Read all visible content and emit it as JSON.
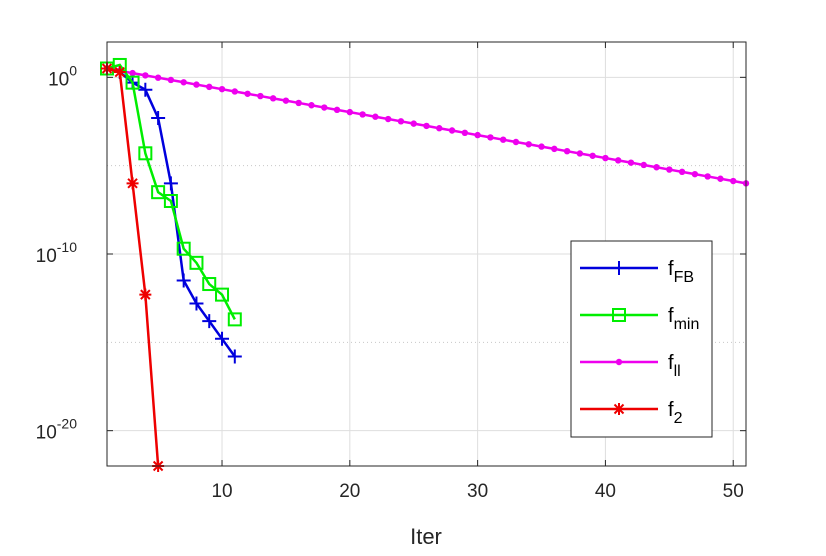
{
  "chart_data": {
    "type": "line",
    "title": "",
    "xlabel": "Iter",
    "ylabel": "",
    "yscale": "log",
    "xlim": [
      1,
      51
    ],
    "ylim_exp": [
      -22,
      2
    ],
    "x_ticks": [
      10,
      20,
      30,
      40,
      50
    ],
    "y_ticks": [
      {
        "base": "10",
        "exp": "0",
        "value_exp": 0
      },
      {
        "base": "10",
        "exp": "-10",
        "value_exp": -10
      },
      {
        "base": "10",
        "exp": "-20",
        "value_exp": -20
      }
    ],
    "grid": true,
    "legend_position": "right",
    "series": [
      {
        "name_main": "f",
        "name_sub": "FB",
        "color": "#0000dd",
        "marker": "plus",
        "x": [
          1,
          2,
          3,
          4,
          5,
          6,
          7,
          8,
          9,
          10,
          11
        ],
        "y_exp": [
          0.5,
          0.3,
          -0.3,
          -0.7,
          -2.3,
          -6.0,
          -11.5,
          -12.8,
          -13.8,
          -14.8,
          -15.8
        ]
      },
      {
        "name_main": "f",
        "name_sub": "min",
        "color": "#00ee00",
        "marker": "square",
        "x": [
          1,
          2,
          3,
          4,
          5,
          6,
          7,
          8,
          9,
          10,
          11
        ],
        "y_exp": [
          0.5,
          0.7,
          -0.3,
          -4.3,
          -6.5,
          -7.0,
          -9.7,
          -10.5,
          -11.7,
          -12.3,
          -13.7
        ]
      },
      {
        "name_main": "f",
        "name_sub": "ll",
        "color": "#ee00ee",
        "marker": "dot",
        "x": [
          1,
          2,
          3,
          4,
          5,
          6,
          7,
          8,
          9,
          10,
          11,
          12,
          13,
          14,
          15,
          16,
          17,
          18,
          19,
          20,
          21,
          22,
          23,
          24,
          25,
          26,
          27,
          28,
          29,
          30,
          31,
          32,
          33,
          34,
          35,
          36,
          37,
          38,
          39,
          40,
          41,
          42,
          43,
          44,
          45,
          46,
          47,
          48,
          49,
          50,
          51
        ],
        "y_exp": [
          0.5,
          0.37,
          0.24,
          0.11,
          -0.02,
          -0.15,
          -0.28,
          -0.41,
          -0.54,
          -0.67,
          -0.8,
          -0.93,
          -1.06,
          -1.19,
          -1.32,
          -1.45,
          -1.58,
          -1.71,
          -1.84,
          -1.97,
          -2.1,
          -2.23,
          -2.36,
          -2.49,
          -2.62,
          -2.75,
          -2.88,
          -3.01,
          -3.14,
          -3.27,
          -3.4,
          -3.53,
          -3.66,
          -3.79,
          -3.92,
          -4.05,
          -4.18,
          -4.31,
          -4.44,
          -4.57,
          -4.7,
          -4.83,
          -4.96,
          -5.09,
          -5.22,
          -5.35,
          -5.48,
          -5.61,
          -5.74,
          -5.87,
          -6.0
        ]
      },
      {
        "name_main": "f",
        "name_sub": "2",
        "color": "#ee0000",
        "marker": "star",
        "x": [
          1,
          2,
          3,
          4,
          5
        ],
        "y_exp": [
          0.5,
          0.3,
          -6.0,
          -12.3,
          -22.0
        ]
      }
    ]
  }
}
